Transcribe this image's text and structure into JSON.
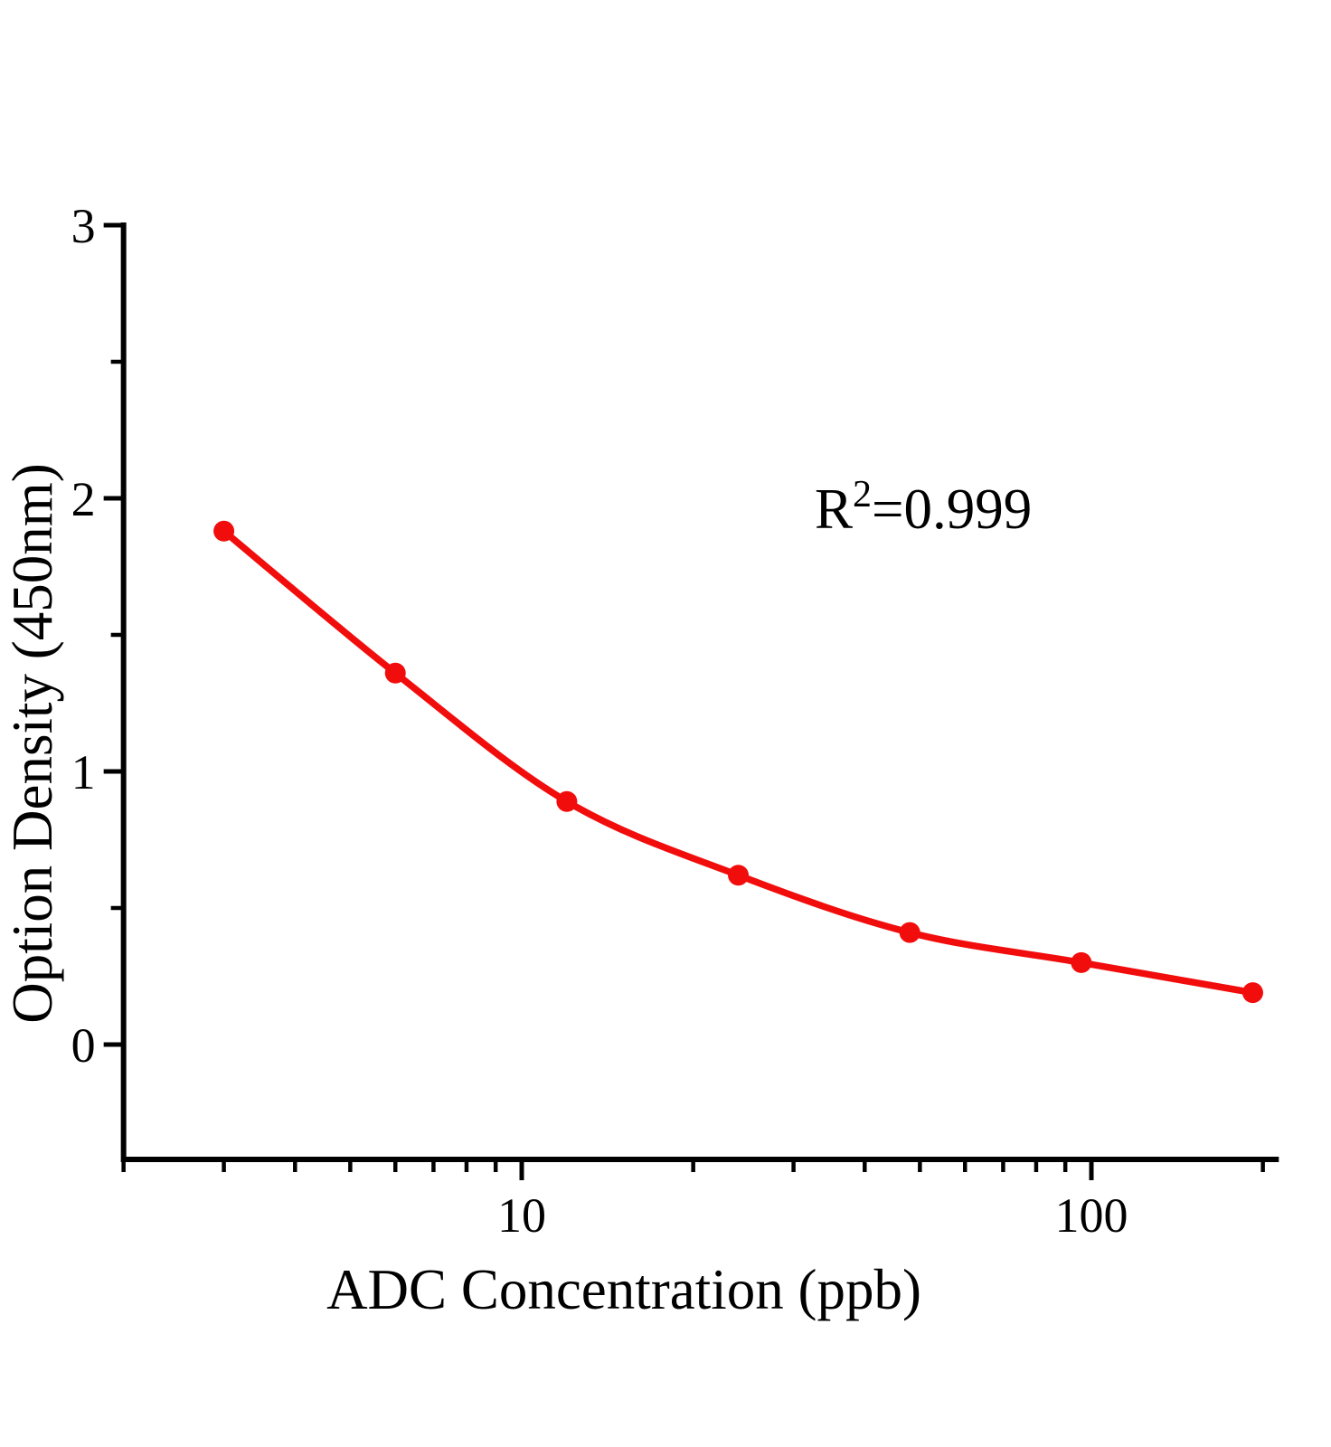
{
  "figure": {
    "background": "#ffffff"
  },
  "chart_data": {
    "type": "scatter",
    "subtype": "standard-curve-with-smooth-fit",
    "title": "",
    "xlabel": "ADC Concentration (ppb)",
    "ylabel": "Option Density (450nm)",
    "x_scale": "log",
    "x": [
      3,
      6,
      12,
      24,
      48,
      96,
      192
    ],
    "y": [
      1.88,
      1.36,
      0.89,
      0.62,
      0.41,
      0.3,
      0.19
    ],
    "x_range": [
      2,
      211
    ],
    "ylim": [
      0,
      3
    ],
    "x_major_ticks": [
      10,
      100
    ],
    "x_major_tick_labels": [
      "10",
      "100"
    ],
    "x_minor_ticks": [
      2,
      3,
      4,
      5,
      6,
      7,
      8,
      9,
      20,
      30,
      40,
      50,
      60,
      70,
      80,
      90,
      200
    ],
    "y_major_ticks": [
      0,
      1,
      2,
      3
    ],
    "y_major_tick_labels": [
      "0",
      "1",
      "2",
      "3"
    ],
    "y_minor_ticks": [
      0.5,
      1.5,
      2.5
    ],
    "annotation": {
      "base": "R",
      "superscript": "2",
      "rest": "=0.999"
    },
    "grid": false,
    "legend_position": "none",
    "marker": "circle",
    "colors": {
      "curve": "#f20d0d",
      "marker": "#f20d0d",
      "axis": "#000000",
      "text": "#000000"
    }
  }
}
